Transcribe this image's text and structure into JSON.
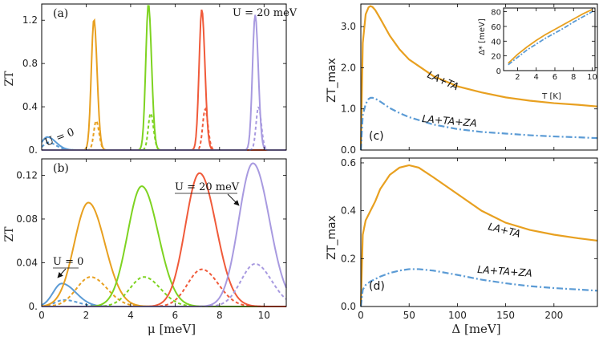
{
  "chart_data": [
    {
      "panel": "(a)",
      "type": "line",
      "xlim": [
        0,
        11
      ],
      "ylim": [
        0,
        1.35
      ],
      "ylabel": "ZT",
      "xlabel": "",
      "yticks": [
        "0.",
        "0.4",
        "0.8",
        "1.2"
      ],
      "xticks_shown": false,
      "annotations": [
        "U = 20 meV",
        "U = 0"
      ],
      "series": [
        {
          "label": "U = 0",
          "color": "#5b9bd5",
          "solid_peak": [
            0.25,
            0.12
          ],
          "dashed_peak": [
            0.3,
            0.07
          ]
        },
        {
          "color": "#e8a020",
          "solid_peak": [
            2.35,
            1.21
          ],
          "dashed_peak": [
            2.45,
            0.27
          ]
        },
        {
          "color": "#7ed321",
          "solid_peak": [
            4.8,
            1.35
          ],
          "dashed_peak": [
            4.9,
            0.34
          ]
        },
        {
          "color": "#f05a3a",
          "solid_peak": [
            7.2,
            1.3
          ],
          "dashed_peak": [
            7.35,
            0.38
          ]
        },
        {
          "label": "U = 20 meV",
          "color": "#a89ae0",
          "solid_peak": [
            9.6,
            1.25
          ],
          "dashed_peak": [
            9.75,
            0.4
          ]
        }
      ]
    },
    {
      "panel": "(b)",
      "type": "line",
      "xlim": [
        0,
        11
      ],
      "ylim": [
        0,
        0.135
      ],
      "xlabel": "μ [meV]",
      "ylabel": "ZT",
      "xticks": [
        0,
        2,
        4,
        6,
        8,
        10
      ],
      "yticks": [
        "0.",
        "0.04",
        "0.08",
        "0.12"
      ],
      "annotations": [
        "U = 20 meV",
        "U = 0"
      ],
      "series": [
        {
          "label": "U = 0",
          "color": "#5b9bd5",
          "solid_peak": [
            0.9,
            0.021
          ],
          "dashed_peak": [
            1.0,
            0.006
          ]
        },
        {
          "color": "#e8a020",
          "solid_peak": [
            2.1,
            0.095
          ],
          "dashed_peak": [
            2.2,
            0.027
          ]
        },
        {
          "color": "#7ed321",
          "solid_peak": [
            4.5,
            0.11
          ],
          "dashed_peak": [
            4.6,
            0.027
          ]
        },
        {
          "color": "#f05a3a",
          "solid_peak": [
            7.1,
            0.122
          ],
          "dashed_peak": [
            7.2,
            0.034
          ]
        },
        {
          "label": "U = 20 meV",
          "color": "#a89ae0",
          "solid_peak": [
            9.5,
            0.131
          ],
          "dashed_peak": [
            9.6,
            0.039
          ]
        }
      ]
    },
    {
      "panel": "(c)",
      "type": "line",
      "xlim": [
        0,
        245
      ],
      "ylim": [
        0,
        3.55
      ],
      "ylabel": "ZT_max",
      "yticks": [
        "0.0",
        "1.0",
        "2.0",
        "3.0"
      ],
      "series": [
        {
          "name": "LA+TA",
          "color": "#e8a020",
          "style": "solid",
          "x": [
            0,
            2,
            5,
            8,
            10,
            12,
            15,
            20,
            30,
            40,
            50,
            75,
            100,
            125,
            150,
            175,
            200,
            225,
            245
          ],
          "y": [
            0,
            2.6,
            3.3,
            3.47,
            3.5,
            3.48,
            3.4,
            3.2,
            2.78,
            2.45,
            2.2,
            1.8,
            1.55,
            1.4,
            1.28,
            1.2,
            1.14,
            1.1,
            1.06
          ]
        },
        {
          "name": "LA+TA+ZA",
          "color": "#5b9bd5",
          "style": "dashdot",
          "x": [
            0,
            2,
            5,
            8,
            10,
            12,
            15,
            20,
            30,
            40,
            50,
            75,
            100,
            125,
            150,
            175,
            200,
            225,
            245
          ],
          "y": [
            0,
            0.85,
            1.12,
            1.24,
            1.27,
            1.27,
            1.25,
            1.18,
            1.02,
            0.9,
            0.8,
            0.62,
            0.51,
            0.44,
            0.4,
            0.36,
            0.33,
            0.31,
            0.29
          ]
        }
      ],
      "inset": {
        "xlabel": "T [K]",
        "ylabel": "Δ* [meV]",
        "xlim": [
          0.5,
          10.3
        ],
        "ylim": [
          0,
          85
        ],
        "xticks": [
          2,
          4,
          6,
          8,
          10
        ],
        "yticks": [
          0,
          20,
          40,
          60,
          80
        ],
        "series": [
          {
            "color": "#e8a020",
            "style": "solid",
            "x": [
              1,
              2,
              3,
              4,
              5,
              6,
              7,
              8,
              9,
              10
            ],
            "y": [
              10,
              22,
              32,
              41,
              49,
              56,
              63,
              70,
              77,
              83
            ]
          },
          {
            "color": "#5b9bd5",
            "style": "dashdot",
            "x": [
              1,
              2,
              3,
              4,
              5,
              6,
              7,
              8,
              9,
              10
            ],
            "y": [
              8,
              18,
              28,
              36,
              44,
              51,
              58,
              66,
              73,
              80
            ]
          }
        ]
      }
    },
    {
      "panel": "(d)",
      "type": "line",
      "xlim": [
        0,
        245
      ],
      "ylim": [
        0,
        0.62
      ],
      "xlabel": "Δ [meV]",
      "ylabel": "ZT_max",
      "xticks": [
        0,
        50,
        100,
        150,
        200
      ],
      "yticks": [
        "0.0",
        "0.2",
        "0.4",
        "0.6"
      ],
      "series": [
        {
          "name": "LA+TA",
          "color": "#e8a020",
          "style": "solid",
          "x": [
            0,
            2,
            5,
            10,
            15,
            20,
            30,
            40,
            50,
            60,
            75,
            100,
            125,
            150,
            175,
            200,
            225,
            245
          ],
          "y": [
            0,
            0.3,
            0.36,
            0.4,
            0.44,
            0.49,
            0.55,
            0.58,
            0.59,
            0.58,
            0.54,
            0.47,
            0.4,
            0.35,
            0.32,
            0.3,
            0.285,
            0.275
          ]
        },
        {
          "name": "LA+TA+ZA",
          "color": "#5b9bd5",
          "style": "dashdot",
          "x": [
            0,
            2,
            5,
            10,
            15,
            20,
            30,
            40,
            50,
            60,
            75,
            100,
            125,
            150,
            175,
            200,
            225,
            245
          ],
          "y": [
            0,
            0.07,
            0.09,
            0.105,
            0.115,
            0.125,
            0.14,
            0.15,
            0.156,
            0.156,
            0.15,
            0.132,
            0.112,
            0.097,
            0.085,
            0.077,
            0.071,
            0.066
          ]
        }
      ]
    }
  ]
}
